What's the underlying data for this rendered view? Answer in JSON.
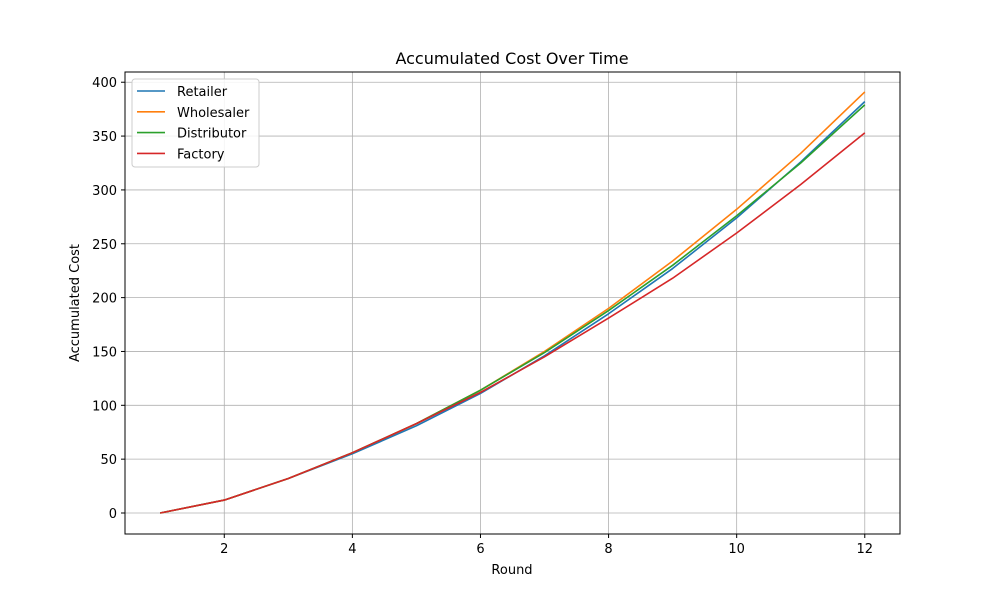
{
  "chart_data": {
    "type": "line",
    "title": "Accumulated Cost Over Time",
    "xlabel": "Round",
    "ylabel": "Accumulated Cost",
    "x": [
      1,
      2,
      3,
      4,
      5,
      6,
      7,
      8,
      9,
      10,
      11,
      12
    ],
    "xlim": [
      0.45,
      12.55
    ],
    "ylim": [
      -19.5,
      409.5
    ],
    "xticks": [
      2,
      4,
      6,
      8,
      10,
      12
    ],
    "yticks": [
      0,
      50,
      100,
      150,
      200,
      250,
      300,
      350,
      400
    ],
    "grid": true,
    "legend_position": "top-left",
    "series": [
      {
        "name": "Retailer",
        "color": "#1f77b4",
        "values": [
          0,
          12,
          32,
          55,
          81,
          111,
          146,
          185,
          227,
          274,
          326,
          382
        ]
      },
      {
        "name": "Wholesaler",
        "color": "#ff7f0e",
        "values": [
          0,
          12,
          32,
          56,
          83,
          114,
          150,
          190,
          234,
          282,
          334,
          391
        ]
      },
      {
        "name": "Distributor",
        "color": "#2ca02c",
        "values": [
          0,
          12,
          32,
          56,
          83,
          114,
          149,
          188,
          230,
          276,
          325,
          379
        ]
      },
      {
        "name": "Factory",
        "color": "#d62728",
        "values": [
          0,
          12,
          32,
          56,
          83,
          112,
          145,
          181,
          218,
          260,
          305,
          353
        ]
      }
    ]
  }
}
